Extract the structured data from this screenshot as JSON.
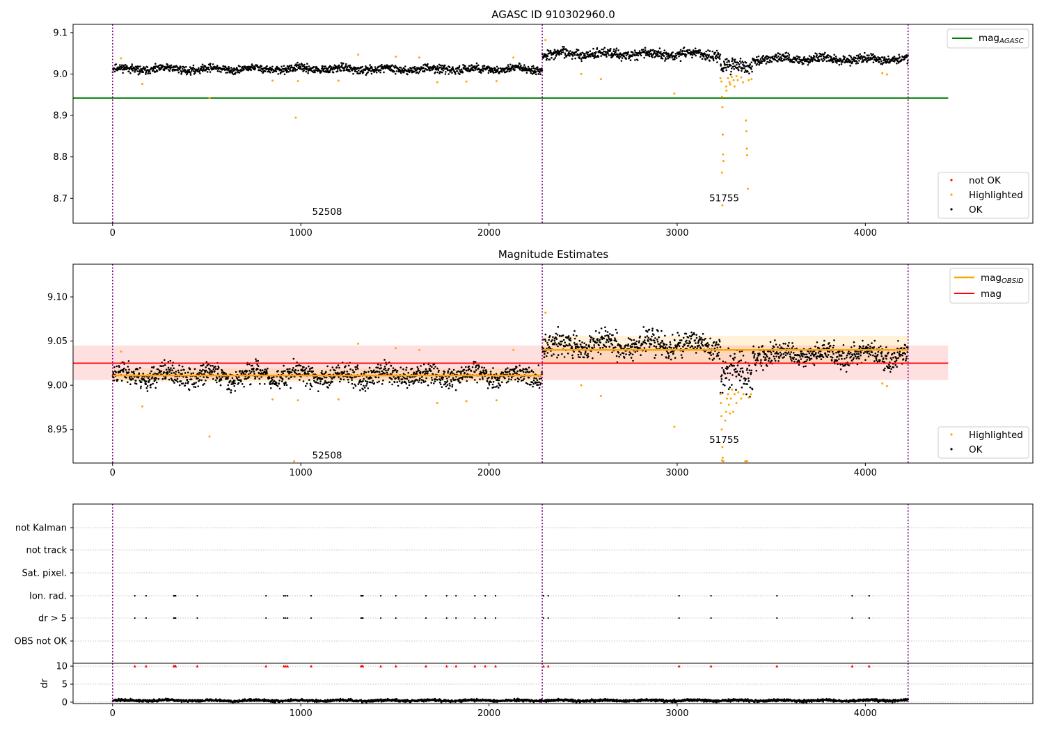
{
  "chart_data": [
    {
      "type": "scatter",
      "title": "AGASC ID 910302960.0",
      "xlabel": "",
      "ylabel": "",
      "xlim": [
        -210,
        4890
      ],
      "ylim": [
        8.64,
        9.12
      ],
      "xticks": [
        0,
        1000,
        2000,
        3000,
        4000
      ],
      "yticks": [
        8.7,
        8.8,
        8.9,
        9.0,
        9.1
      ],
      "xtick_labels": [
        "0",
        "1000",
        "2000",
        "3000",
        "4000"
      ],
      "ytick_labels": [
        "8.7",
        "8.8",
        "8.9",
        "9.0",
        "9.1"
      ],
      "obsid_boundaries": [
        0,
        2283,
        4227
      ],
      "annotations": [
        {
          "text": "52508",
          "x": 1140,
          "y": 8.66
        },
        {
          "text": "51755",
          "x": 3250,
          "y": 8.693
        }
      ],
      "lines": [
        {
          "name": "mag_AGASC",
          "label": "mag",
          "label_sub": "AGASC",
          "y": 8.942,
          "x": [
            -210,
            4440
          ],
          "color": "#008000"
        }
      ],
      "series": [
        {
          "name": "OK",
          "color": "#000000",
          "segments": [
            {
              "x": [
                0,
                2283
              ],
              "base": 9.012,
              "noise": 0.007
            },
            {
              "x": [
                2283,
                3230
              ],
              "base": 9.048,
              "noise": 0.009
            },
            {
              "x": [
                3230,
                3400
              ],
              "base": 9.018,
              "noise": 0.014
            },
            {
              "x": [
                3400,
                4227
              ],
              "base": 9.036,
              "noise": 0.008
            }
          ]
        },
        {
          "name": "Highlighted",
          "color": "#ffa500",
          "points": [
            [
              45,
              9.038
            ],
            [
              158,
              8.976
            ],
            [
              515,
              8.942
            ],
            [
              850,
              8.984
            ],
            [
              973,
              8.895
            ],
            [
              985,
              8.983
            ],
            [
              1200,
              8.984
            ],
            [
              1305,
              9.047
            ],
            [
              1505,
              9.042
            ],
            [
              1630,
              9.04
            ],
            [
              1725,
              8.98
            ],
            [
              1880,
              8.982
            ],
            [
              2040,
              8.983
            ],
            [
              2130,
              9.04
            ],
            [
              2300,
              9.082
            ],
            [
              2490,
              9.0
            ],
            [
              2595,
              8.988
            ],
            [
              2985,
              8.953
            ],
            [
              3230,
              8.99
            ],
            [
              3235,
              8.982
            ],
            [
              3238,
              8.945
            ],
            [
              3240,
              8.92
            ],
            [
              3242,
              8.854
            ],
            [
              3244,
              8.806
            ],
            [
              3246,
              8.79
            ],
            [
              3238,
              8.762
            ],
            [
              3240,
              8.683
            ],
            [
              3260,
              8.97
            ],
            [
              3262,
              8.96
            ],
            [
              3270,
              8.99
            ],
            [
              3278,
              8.98
            ],
            [
              3282,
              8.975
            ],
            [
              3290,
              8.993
            ],
            [
              3300,
              8.985
            ],
            [
              3305,
              8.97
            ],
            [
              3315,
              8.995
            ],
            [
              3322,
              8.985
            ],
            [
              3340,
              8.992
            ],
            [
              3350,
              8.98
            ],
            [
              3365,
              8.888
            ],
            [
              3368,
              8.862
            ],
            [
              3370,
              8.82
            ],
            [
              3372,
              8.804
            ],
            [
              3375,
              8.723
            ],
            [
              3380,
              8.985
            ],
            [
              3395,
              8.988
            ],
            [
              4090,
              9.002
            ],
            [
              4115,
              8.999
            ]
          ]
        },
        {
          "name": "not OK",
          "color": "#ff0000",
          "points": []
        }
      ],
      "legend": {
        "line_position": "upper-right",
        "points_position": "lower-right",
        "points_entries": [
          "not OK",
          "Highlighted",
          "OK"
        ]
      }
    },
    {
      "type": "scatter",
      "title": "Magnitude Estimates",
      "xlabel": "",
      "ylabel": "",
      "xlim": [
        -210,
        4890
      ],
      "ylim": [
        8.912,
        9.137
      ],
      "xticks": [
        0,
        1000,
        2000,
        3000,
        4000
      ],
      "yticks": [
        8.95,
        9.0,
        9.05,
        9.1
      ],
      "xtick_labels": [
        "0",
        "1000",
        "2000",
        "3000",
        "4000"
      ],
      "ytick_labels": [
        "8.95",
        "9.00",
        "9.05",
        "9.10"
      ],
      "obsid_boundaries": [
        0,
        2283,
        4227
      ],
      "annotations": [
        {
          "text": "52508",
          "x": 1140,
          "y": 8.917
        },
        {
          "text": "51755",
          "x": 3250,
          "y": 8.935
        }
      ],
      "lines": [
        {
          "name": "mag_OBSID",
          "label": "mag",
          "label_sub": "OBSID",
          "color": "#ffa500",
          "segments": [
            {
              "x": [
                0,
                2283
              ],
              "y": 9.011,
              "band": [
                9.004,
                9.019
              ]
            },
            {
              "x": [
                2283,
                4227
              ],
              "y": 9.04,
              "band": [
                9.024,
                9.056
              ]
            }
          ]
        },
        {
          "name": "mag",
          "label": "mag",
          "color": "#ff0000",
          "y": 9.025,
          "band": [
            9.006,
            9.045
          ],
          "x": [
            -210,
            4440
          ]
        }
      ],
      "series": [
        {
          "name": "OK",
          "color": "#000000",
          "segments": [
            {
              "x": [
                0,
                2283
              ],
              "base": 9.011,
              "noise": 0.009
            },
            {
              "x": [
                2283,
                3230
              ],
              "base": 9.046,
              "noise": 0.01
            },
            {
              "x": [
                3230,
                3400
              ],
              "base": 9.015,
              "noise": 0.016
            },
            {
              "x": [
                3400,
                4227
              ],
              "base": 9.035,
              "noise": 0.009
            }
          ]
        },
        {
          "name": "Highlighted",
          "color": "#ffa500",
          "points": [
            [
              45,
              9.038
            ],
            [
              158,
              8.976
            ],
            [
              515,
              8.942
            ],
            [
              850,
              8.984
            ],
            [
              985,
              8.983
            ],
            [
              965,
              8.914
            ],
            [
              1200,
              8.984
            ],
            [
              1305,
              9.047
            ],
            [
              1505,
              9.042
            ],
            [
              1630,
              9.04
            ],
            [
              1725,
              8.98
            ],
            [
              1880,
              8.982
            ],
            [
              2040,
              8.983
            ],
            [
              2130,
              9.04
            ],
            [
              2300,
              9.082
            ],
            [
              2490,
              9.0
            ],
            [
              2595,
              8.988
            ],
            [
              2985,
              8.953
            ],
            [
              3230,
              8.99
            ],
            [
              3232,
              8.98
            ],
            [
              3235,
              8.965
            ],
            [
              3237,
              8.95
            ],
            [
              3240,
              8.93
            ],
            [
              3242,
              8.918
            ],
            [
              3244,
              8.914
            ],
            [
              3238,
              8.915
            ],
            [
              3246,
              8.914
            ],
            [
              3255,
              8.96
            ],
            [
              3260,
              8.97
            ],
            [
              3265,
              8.985
            ],
            [
              3270,
              8.99
            ],
            [
              3275,
              8.978
            ],
            [
              3280,
              8.968
            ],
            [
              3285,
              8.985
            ],
            [
              3292,
              8.995
            ],
            [
              3298,
              8.97
            ],
            [
              3305,
              8.99
            ],
            [
              3315,
              8.98
            ],
            [
              3325,
              8.992
            ],
            [
              3340,
              8.985
            ],
            [
              3352,
              8.99
            ],
            [
              3362,
              8.914
            ],
            [
              3367,
              8.914
            ],
            [
              3372,
              8.914
            ],
            [
              3380,
              8.986
            ],
            [
              3392,
              8.99
            ],
            [
              4090,
              9.002
            ],
            [
              4115,
              8.999
            ]
          ]
        }
      ],
      "legend": {
        "line_position": "upper-right",
        "points_position": "lower-right",
        "points_entries": [
          "Highlighted",
          "OK"
        ]
      }
    },
    {
      "type": "scatter",
      "title": "",
      "xlabel": "",
      "ylabel": "",
      "xlim": [
        -210,
        4890
      ],
      "categories": [
        "not Kalman",
        "not track",
        "Sat. pixel.",
        "Ion. rad.",
        "dr > 5",
        "OBS not OK"
      ],
      "obsid_boundaries": [
        0,
        2283,
        4227
      ],
      "flag_events": [
        {
          "category": "Ion. rad.",
          "x": [
            118,
            178,
            325,
            330,
            335,
            450,
            815,
            910,
            920,
            930,
            1055,
            1320,
            1325,
            1330,
            1425,
            1505,
            1665,
            1775,
            1825,
            1925,
            1980,
            2035,
            2290,
            2315,
            3010,
            3180,
            3530,
            3930,
            4020
          ]
        },
        {
          "category": "dr > 5",
          "x": [
            118,
            178,
            325,
            330,
            335,
            450,
            815,
            910,
            920,
            930,
            1055,
            1320,
            1325,
            1330,
            1425,
            1505,
            1665,
            1775,
            1825,
            1925,
            1980,
            2035,
            2290,
            2315,
            3010,
            3180,
            3530,
            3930,
            4020
          ]
        }
      ]
    },
    {
      "type": "scatter",
      "title": "",
      "xlabel": "",
      "ylabel": "dr",
      "xlim": [
        -210,
        4890
      ],
      "ylim": [
        -0.4,
        10.8
      ],
      "yticks": [
        0,
        5,
        10
      ],
      "ytick_labels": [
        "0",
        "5",
        "10"
      ],
      "xticks": [
        0,
        1000,
        2000,
        3000,
        4000
      ],
      "xtick_labels": [
        "0",
        "1000",
        "2000",
        "3000",
        "4000"
      ],
      "obsid_boundaries": [
        0,
        2283,
        4227
      ],
      "series": [
        {
          "name": "dr",
          "color": "#000000",
          "segments": [
            {
              "x": [
                0,
                4227
              ],
              "base": 0.45,
              "noise": 0.25
            }
          ]
        },
        {
          "name": "dr > 10",
          "color": "#ff0000",
          "y": 10,
          "x": [
            118,
            178,
            325,
            330,
            335,
            450,
            815,
            910,
            920,
            930,
            1055,
            1320,
            1325,
            1330,
            1425,
            1505,
            1665,
            1775,
            1825,
            1925,
            1980,
            2035,
            2290,
            2315,
            3010,
            3180,
            3530,
            3930,
            4020
          ]
        }
      ]
    }
  ]
}
